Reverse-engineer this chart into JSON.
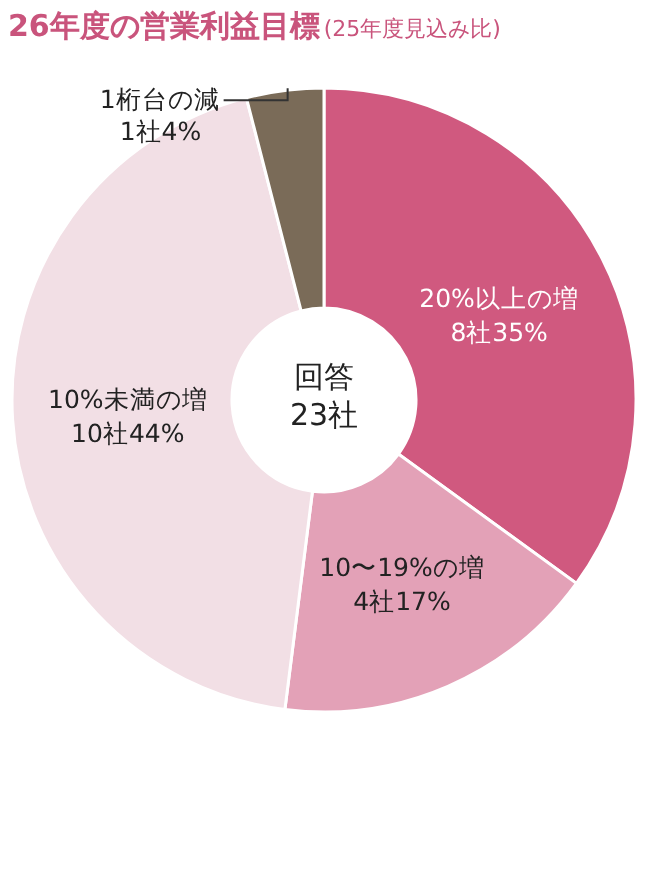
{
  "chart_data": {
    "type": "donut",
    "title": "26年度の営業利益目標",
    "subtitle": "(25年度見込み比)",
    "categories": [
      "20%以上の増",
      "10〜19%の増",
      "10%未満の増",
      "1桁台の減"
    ],
    "values": [
      35,
      17,
      44,
      4
    ],
    "value_labels": [
      "8社35%",
      "4社17%",
      "10社44%",
      "1社4%"
    ],
    "colors": [
      "#d0597f",
      "#e3a1b7",
      "#f2dfe5",
      "#7a6b58"
    ],
    "annotations": [
      "回答\n23社"
    ],
    "legend": false
  }
}
